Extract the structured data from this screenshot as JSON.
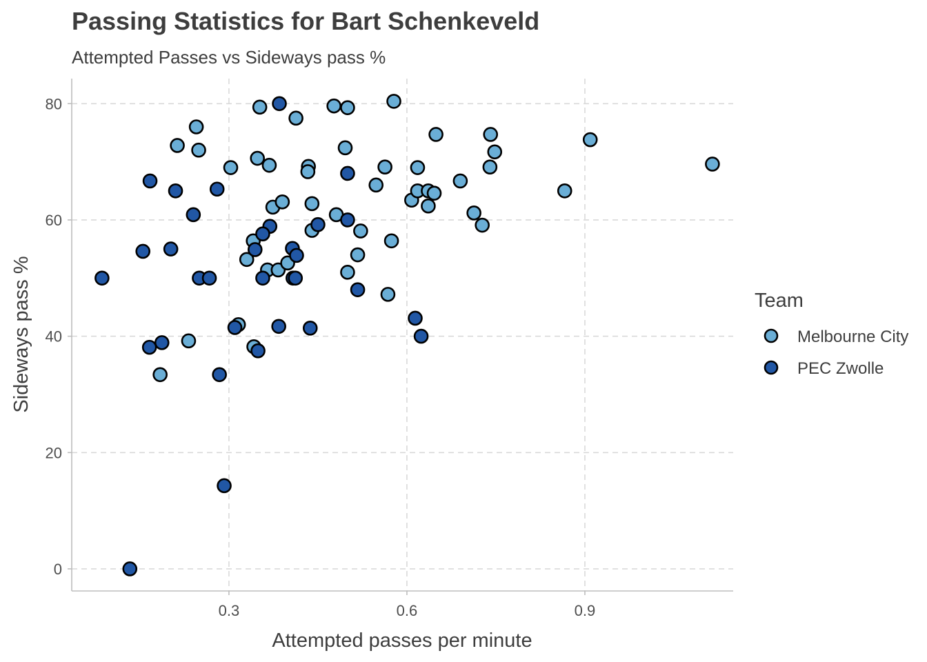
{
  "chart_data": {
    "type": "scatter",
    "title": "Passing Statistics for Bart Schenkeveld",
    "subtitle": "Attempted Passes vs Sideways pass %",
    "xlabel": "Attempted passes per minute",
    "ylabel": "Sideways pass %",
    "xlim": [
      0.035,
      1.15
    ],
    "ylim": [
      -3.8,
      84.3
    ],
    "x_ticks": [
      0.3,
      0.6,
      0.9
    ],
    "x_tick_labels": [
      "0.3",
      "0.6",
      "0.9"
    ],
    "y_ticks": [
      0,
      20,
      40,
      60,
      80
    ],
    "y_tick_labels": [
      "0",
      "20",
      "40",
      "60",
      "80"
    ],
    "grid": "major, dashed",
    "legend": {
      "title": "Team",
      "placement": "right",
      "entries": [
        "Melbourne City",
        "PEC Zwolle"
      ]
    },
    "series": [
      {
        "name": "Melbourne City",
        "color": "#6aaed6",
        "points": [
          [
            0.245,
            76.0
          ],
          [
            0.352,
            79.4
          ],
          [
            0.413,
            77.5
          ],
          [
            0.477,
            79.6
          ],
          [
            0.5,
            79.3
          ],
          [
            0.578,
            80.4
          ],
          [
            0.213,
            72.8
          ],
          [
            0.249,
            72.0
          ],
          [
            0.303,
            69.0
          ],
          [
            0.348,
            70.6
          ],
          [
            0.368,
            69.4
          ],
          [
            0.434,
            69.2
          ],
          [
            0.433,
            68.3
          ],
          [
            0.496,
            72.4
          ],
          [
            0.563,
            69.1
          ],
          [
            0.618,
            69.0
          ],
          [
            0.649,
            74.7
          ],
          [
            0.741,
            74.7
          ],
          [
            0.748,
            71.7
          ],
          [
            0.74,
            69.1
          ],
          [
            0.909,
            73.8
          ],
          [
            1.115,
            69.6
          ],
          [
            0.548,
            66.0
          ],
          [
            0.608,
            63.4
          ],
          [
            0.618,
            65.0
          ],
          [
            0.636,
            65.0
          ],
          [
            0.646,
            64.6
          ],
          [
            0.636,
            62.4
          ],
          [
            0.69,
            66.7
          ],
          [
            0.866,
            65.0
          ],
          [
            0.713,
            61.2
          ],
          [
            0.727,
            59.1
          ],
          [
            0.374,
            62.2
          ],
          [
            0.39,
            63.1
          ],
          [
            0.44,
            62.8
          ],
          [
            0.481,
            60.9
          ],
          [
            0.44,
            58.2
          ],
          [
            0.522,
            58.1
          ],
          [
            0.341,
            56.4
          ],
          [
            0.574,
            56.4
          ],
          [
            0.33,
            53.2
          ],
          [
            0.365,
            51.4
          ],
          [
            0.383,
            51.4
          ],
          [
            0.399,
            52.6
          ],
          [
            0.517,
            54.0
          ],
          [
            0.5,
            51.0
          ],
          [
            0.568,
            47.2
          ],
          [
            0.316,
            42.0
          ],
          [
            0.342,
            38.2
          ],
          [
            0.232,
            39.2
          ],
          [
            0.184,
            33.4
          ]
        ]
      },
      {
        "name": "PEC Zwolle",
        "color": "#2157a5",
        "points": [
          [
            0.385,
            80.0
          ],
          [
            0.5,
            68.0
          ],
          [
            0.167,
            66.7
          ],
          [
            0.21,
            65.0
          ],
          [
            0.28,
            65.3
          ],
          [
            0.24,
            60.9
          ],
          [
            0.5,
            60.0
          ],
          [
            0.369,
            58.9
          ],
          [
            0.357,
            57.6
          ],
          [
            0.45,
            59.2
          ],
          [
            0.155,
            54.6
          ],
          [
            0.202,
            55.0
          ],
          [
            0.344,
            54.9
          ],
          [
            0.407,
            55.1
          ],
          [
            0.414,
            53.9
          ],
          [
            0.086,
            50.0
          ],
          [
            0.25,
            50.0
          ],
          [
            0.267,
            50.0
          ],
          [
            0.357,
            50.0
          ],
          [
            0.408,
            50.0
          ],
          [
            0.412,
            50.0
          ],
          [
            0.517,
            48.0
          ],
          [
            0.31,
            41.5
          ],
          [
            0.384,
            41.7
          ],
          [
            0.437,
            41.4
          ],
          [
            0.614,
            43.1
          ],
          [
            0.624,
            40.0
          ],
          [
            0.166,
            38.1
          ],
          [
            0.187,
            38.9
          ],
          [
            0.349,
            37.5
          ],
          [
            0.284,
            33.4
          ],
          [
            0.292,
            14.3
          ],
          [
            0.133,
            0.0
          ]
        ]
      }
    ]
  }
}
